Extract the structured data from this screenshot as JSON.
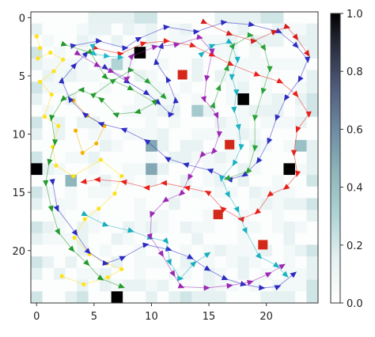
{
  "chart_data": {
    "type": "heatmap",
    "title": "",
    "xlabel": "",
    "ylabel": "",
    "grid_size": 25,
    "xlim": [
      -0.5,
      24.5
    ],
    "ylim": [
      -0.5,
      24.5
    ],
    "x_ticks": [
      0,
      5,
      10,
      15,
      20
    ],
    "y_ticks": [
      0,
      5,
      10,
      15,
      20
    ],
    "colorbar": {
      "min": 0.0,
      "max": 1.0,
      "ticks": [
        "0.0",
        "0.2",
        "0.4",
        "0.6",
        "0.8",
        "1.0"
      ],
      "colormap": "bone_r"
    },
    "dark_cells": [
      {
        "x": 9,
        "y": 3,
        "value": 1.0
      },
      {
        "x": 18,
        "y": 7,
        "value": 1.0
      },
      {
        "x": 0,
        "y": 13,
        "value": 1.0
      },
      {
        "x": 22,
        "y": 13,
        "value": 1.0
      },
      {
        "x": 7,
        "y": 24,
        "value": 1.0
      },
      {
        "x": 10,
        "y": 11,
        "value": 0.5
      },
      {
        "x": 10,
        "y": 13,
        "value": 0.5
      },
      {
        "x": 3,
        "y": 14,
        "value": 0.45
      },
      {
        "x": 14,
        "y": 8,
        "value": 0.35
      },
      {
        "x": 23,
        "y": 11,
        "value": 0.4
      },
      {
        "x": 7,
        "y": 4,
        "value": 0.3
      }
    ],
    "red_squares": [
      {
        "x": 12.7,
        "y": 4.9
      },
      {
        "x": 16.8,
        "y": 10.9
      },
      {
        "x": 15.8,
        "y": 16.9
      },
      {
        "x": 19.7,
        "y": 19.5
      }
    ],
    "trajectories": [
      {
        "color": "#ffe21a",
        "marker": "dot",
        "points": [
          [
            0,
            1.6
          ],
          [
            0.3,
            2.6
          ],
          [
            0.1,
            3.5
          ],
          [
            1.2,
            3.0
          ],
          [
            2.3,
            3.6
          ],
          [
            1.5,
            4.6
          ],
          [
            0.3,
            5.5
          ],
          [
            1.3,
            6.6
          ],
          [
            0.7,
            8.5
          ],
          [
            1.9,
            9.3
          ],
          [
            1.4,
            11.1
          ],
          [
            1.7,
            12.7
          ],
          [
            3.2,
            13.6
          ],
          [
            5.6,
            12.2
          ],
          [
            7.4,
            13.6
          ],
          [
            6.8,
            15.1
          ],
          [
            5.4,
            16.4
          ],
          [
            4.2,
            17.3
          ],
          [
            3.3,
            18.9
          ],
          [
            4.6,
            20.3
          ],
          [
            6.1,
            21.1
          ],
          [
            7.4,
            21.6
          ],
          [
            6.2,
            22.3
          ],
          [
            4.1,
            22.9
          ],
          [
            2.2,
            22.2
          ]
        ]
      },
      {
        "color": "#f4b200",
        "marker": "dot",
        "points": [
          [
            3.2,
            7.1
          ],
          [
            4.4,
            8.4
          ],
          [
            5.9,
            9.3
          ],
          [
            5.2,
            10.8
          ],
          [
            4.0,
            11.6
          ],
          [
            3.4,
            9.7
          ]
        ]
      },
      {
        "color": "#2c2cc4",
        "marker": "tri",
        "points": [
          [
            3.2,
            2.4
          ],
          [
            5.4,
            2.0
          ],
          [
            7.7,
            2.6
          ],
          [
            8.9,
            1.8
          ],
          [
            11.3,
            0.8
          ],
          [
            13.9,
            1.2
          ],
          [
            16.3,
            0.4
          ],
          [
            18.7,
            0.6
          ],
          [
            21.1,
            1.2
          ],
          [
            22.6,
            2.4
          ],
          [
            23.6,
            3.6
          ],
          [
            22.9,
            5.3
          ],
          [
            21.7,
            6.9
          ],
          [
            20.9,
            8.6
          ],
          [
            20.2,
            10.6
          ],
          [
            19.3,
            12.3
          ],
          [
            18.1,
            13.5
          ],
          [
            16.8,
            13.9
          ],
          [
            15.1,
            13.1
          ],
          [
            13.0,
            12.6
          ],
          [
            11.4,
            12.1
          ],
          [
            9.6,
            10.6
          ],
          [
            7.6,
            9.6
          ],
          [
            5.6,
            9.1
          ],
          [
            4.2,
            8.3
          ],
          [
            2.9,
            7.0
          ],
          [
            2.2,
            5.4
          ],
          [
            3.3,
            4.1
          ],
          [
            4.3,
            3.1
          ]
        ]
      },
      {
        "color": "#2a2ac0",
        "marker": "tri",
        "points": [
          [
            6.0,
            4.3
          ],
          [
            7.9,
            5.5
          ],
          [
            9.6,
            6.5
          ],
          [
            10.6,
            7.3
          ],
          [
            11.7,
            8.3
          ],
          [
            12.1,
            7.1
          ],
          [
            11.4,
            5.3
          ],
          [
            10.4,
            3.8
          ],
          [
            10.9,
            2.4
          ]
        ]
      },
      {
        "color": "#2b2bc2",
        "marker": "tri",
        "points": [
          [
            1.4,
            14.1
          ],
          [
            1.8,
            16.4
          ],
          [
            3.4,
            18.5
          ],
          [
            4.5,
            20.1
          ],
          [
            6.0,
            21.1
          ],
          [
            7.5,
            20.6
          ],
          [
            9.5,
            19.5
          ],
          [
            11.5,
            19.9
          ],
          [
            13.4,
            20.6
          ],
          [
            14.9,
            21.6
          ],
          [
            16.4,
            22.4
          ],
          [
            18.0,
            22.9
          ],
          [
            19.6,
            23.2
          ],
          [
            21.0,
            23.1
          ],
          [
            22.4,
            22.0
          ]
        ]
      },
      {
        "color": "#e8201a",
        "marker": "tri",
        "points": [
          [
            5.1,
            2.6
          ],
          [
            7.3,
            3.1
          ],
          [
            9.3,
            2.2
          ],
          [
            11.3,
            2.0
          ],
          [
            13.6,
            2.4
          ],
          [
            15.3,
            3.2
          ],
          [
            16.9,
            4.0
          ],
          [
            19.2,
            4.9
          ],
          [
            21.2,
            5.5
          ],
          [
            22.6,
            6.6
          ],
          [
            23.7,
            8.3
          ],
          [
            22.7,
            9.6
          ],
          [
            22.4,
            11.6
          ],
          [
            22.7,
            13.4
          ],
          [
            21.7,
            14.6
          ],
          [
            20.3,
            15.2
          ],
          [
            19.2,
            16.7
          ],
          [
            17.8,
            17.3
          ],
          [
            16.2,
            16.4
          ],
          [
            14.9,
            15.0
          ],
          [
            13.1,
            14.6
          ],
          [
            11.1,
            14.2
          ],
          [
            9.6,
            14.6
          ],
          [
            7.6,
            14.1
          ],
          [
            5.3,
            13.9
          ],
          [
            4.1,
            14.1
          ]
        ]
      },
      {
        "color": "#d61c1c",
        "marker": "tri",
        "points": [
          [
            14.6,
            0.4
          ],
          [
            16.8,
            1.4
          ],
          [
            18.9,
            2.0
          ],
          [
            20.7,
            1.2
          ],
          [
            21.8,
            0.8
          ],
          [
            22.6,
            1.7
          ],
          [
            23.6,
            3.1
          ]
        ]
      },
      {
        "color": "#239a2c",
        "marker": "tri",
        "points": [
          [
            2.4,
            2.3
          ],
          [
            4.7,
            3.0
          ],
          [
            6.0,
            5.1
          ],
          [
            8.2,
            6.1
          ],
          [
            10.3,
            7.3
          ],
          [
            8.8,
            8.1
          ],
          [
            6.9,
            8.3
          ],
          [
            5.6,
            7.0
          ],
          [
            3.9,
            6.2
          ],
          [
            2.3,
            7.0
          ],
          [
            1.3,
            8.6
          ],
          [
            1.6,
            10.7
          ],
          [
            1.1,
            12.4
          ],
          [
            0.8,
            14.2
          ],
          [
            1.3,
            16.4
          ],
          [
            1.9,
            18.4
          ],
          [
            3.1,
            19.9
          ],
          [
            4.4,
            21.1
          ],
          [
            5.6,
            22.4
          ],
          [
            7.4,
            23.1
          ]
        ]
      },
      {
        "color": "#26a032",
        "marker": "tri",
        "points": [
          [
            5.0,
            6.6
          ],
          [
            6.7,
            5.4
          ],
          [
            8.2,
            4.5
          ],
          [
            9.7,
            5.5
          ],
          [
            11.1,
            6.8
          ]
        ]
      },
      {
        "color": "#2aa236",
        "marker": "tri",
        "points": [
          [
            15.4,
            7.5
          ],
          [
            15.9,
            6.0
          ],
          [
            16.6,
            4.3
          ],
          [
            17.1,
            2.4
          ],
          [
            18.6,
            1.5
          ],
          [
            19.8,
            2.6
          ],
          [
            20.3,
            4.4
          ],
          [
            19.7,
            6.3
          ],
          [
            19.0,
            8.6
          ],
          [
            19.0,
            11.2
          ],
          [
            18.4,
            13.2
          ],
          [
            16.6,
            13.8
          ]
        ]
      },
      {
        "color": "#1fb7c4",
        "marker": "tri",
        "points": [
          [
            4.9,
            2.5
          ],
          [
            5.0,
            3.1
          ],
          [
            6.1,
            3.3
          ],
          [
            7.3,
            3.4
          ]
        ]
      },
      {
        "color": "#19b2c2",
        "marker": "tri",
        "points": [
          [
            14.4,
            3.1
          ],
          [
            15.3,
            2.4
          ],
          [
            16.8,
            2.1
          ],
          [
            17.5,
            3.6
          ],
          [
            17.0,
            5.1
          ],
          [
            17.4,
            6.4
          ],
          [
            17.2,
            7.9
          ],
          [
            17.6,
            9.4
          ],
          [
            17.8,
            11.1
          ],
          [
            17.2,
            12.5
          ],
          [
            16.1,
            13.8
          ],
          [
            16.7,
            15.2
          ],
          [
            17.5,
            16.5
          ],
          [
            18.2,
            18.3
          ],
          [
            19.4,
            20.5
          ],
          [
            20.9,
            21.3
          ],
          [
            21.7,
            22.1
          ]
        ]
      },
      {
        "color": "#17aebe",
        "marker": "tri",
        "points": [
          [
            4.2,
            16.9
          ],
          [
            6.0,
            17.8
          ],
          [
            8.2,
            18.3
          ],
          [
            9.9,
            18.9
          ],
          [
            11.3,
            19.2
          ],
          [
            11.6,
            21.0
          ],
          [
            12.5,
            22.4
          ],
          [
            13.7,
            21.1
          ],
          [
            14.9,
            20.3
          ]
        ]
      },
      {
        "color": "#9b27b3",
        "marker": "tri",
        "points": [
          [
            3.6,
            3.1
          ],
          [
            5.3,
            4.1
          ],
          [
            6.5,
            4.6
          ],
          [
            7.9,
            5.2
          ],
          [
            8.3,
            3.3
          ],
          [
            10.3,
            2.5
          ],
          [
            12.2,
            2.3
          ],
          [
            14.2,
            1.7
          ],
          [
            15.3,
            2.9
          ],
          [
            14.8,
            5.2
          ],
          [
            14.6,
            7.0
          ],
          [
            15.7,
            8.4
          ],
          [
            15.9,
            10.0
          ],
          [
            15.4,
            11.5
          ],
          [
            14.4,
            11.8
          ],
          [
            13.3,
            13.7
          ],
          [
            12.6,
            15.1
          ],
          [
            11.2,
            15.7
          ],
          [
            10.0,
            16.9
          ],
          [
            9.9,
            18.8
          ],
          [
            10.9,
            20.3
          ],
          [
            11.9,
            22.0
          ],
          [
            12.6,
            23.1
          ],
          [
            14.8,
            23.2
          ],
          [
            16.8,
            23.0
          ],
          [
            18.6,
            22.7
          ],
          [
            20.2,
            22.0
          ],
          [
            21.4,
            21.3
          ]
        ]
      }
    ]
  }
}
